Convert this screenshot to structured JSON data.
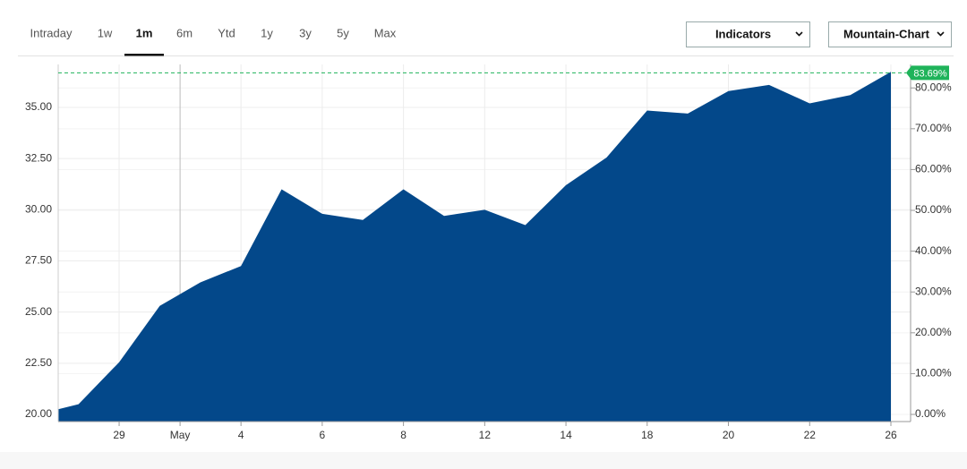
{
  "toolbar": {
    "tabs": [
      "Intraday",
      "1w",
      "1m",
      "6m",
      "Ytd",
      "1y",
      "3y",
      "5y",
      "Max"
    ],
    "active_tab": 2,
    "buttons": [
      "Indicators",
      "Mountain-Chart"
    ]
  },
  "chart_data": {
    "type": "area",
    "color": "#03488a",
    "x": [
      0.5,
      1,
      2,
      3,
      4,
      5,
      6,
      7,
      8,
      9,
      10,
      11,
      12,
      13,
      14,
      15,
      16,
      17,
      18,
      19,
      20,
      21
    ],
    "values": [
      20.25,
      20.5,
      22.55,
      25.3,
      26.45,
      27.25,
      31.0,
      29.8,
      29.5,
      31.0,
      29.7,
      30.0,
      29.25,
      31.2,
      32.55,
      34.85,
      34.7,
      35.8,
      36.1,
      35.2,
      35.6,
      36.74
    ],
    "xlim": [
      0.5,
      21
    ],
    "xticks": [
      {
        "value": 2,
        "label": "29"
      },
      {
        "value": 3.5,
        "label": "May"
      },
      {
        "value": 5,
        "label": "4"
      },
      {
        "value": 7,
        "label": "6"
      },
      {
        "value": 9,
        "label": "8"
      },
      {
        "value": 11,
        "label": "12"
      },
      {
        "value": 13,
        "label": "14"
      },
      {
        "value": 15,
        "label": "18"
      },
      {
        "value": 17,
        "label": "20"
      },
      {
        "value": 19,
        "label": "22"
      },
      {
        "value": 21,
        "label": "26"
      }
    ],
    "ylim": [
      19.65,
      37.1
    ],
    "yticks": [
      {
        "value": 20,
        "label": "20.00"
      },
      {
        "value": 22.5,
        "label": "22.50"
      },
      {
        "value": 25,
        "label": "25.00"
      },
      {
        "value": 27.5,
        "label": "27.50"
      },
      {
        "value": 30,
        "label": "30.00"
      },
      {
        "value": 32.5,
        "label": "32.50"
      },
      {
        "value": 35,
        "label": "35.00"
      }
    ],
    "y2lim": [
      -1.75,
      85.75
    ],
    "y2ticks": [
      {
        "value": 0,
        "label": "0.00%"
      },
      {
        "value": 10,
        "label": "10.00%"
      },
      {
        "value": 20,
        "label": "20.00%"
      },
      {
        "value": 30,
        "label": "30.00%"
      },
      {
        "value": 40,
        "label": "40.00%"
      },
      {
        "value": 50,
        "label": "50.00%"
      },
      {
        "value": 60,
        "label": "60.00%"
      },
      {
        "value": 70,
        "label": "70.00%"
      },
      {
        "value": 80,
        "label": "80.00%"
      }
    ],
    "annotation": {
      "value": 83.69,
      "label": "83.69%",
      "color": "#1fb35a"
    },
    "grid": true
  }
}
